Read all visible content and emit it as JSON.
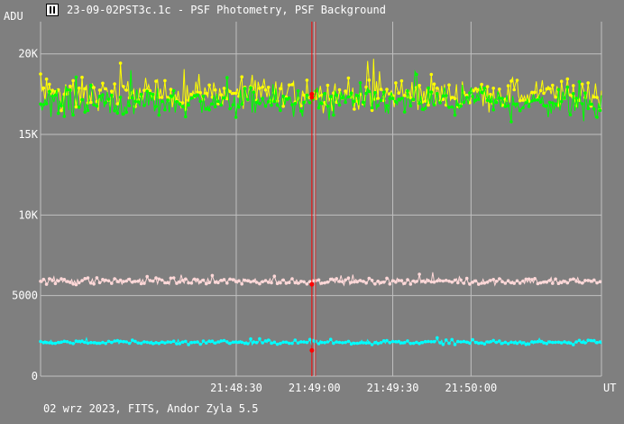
{
  "window": {
    "title": "23-09-02PST3c.1c - PSF Photometry, PSF Background",
    "icon": "app-logo-icon"
  },
  "footer": "02 wrz 2023, FITS, Andor Zyla 5.5",
  "chart_data": {
    "type": "line",
    "title": "",
    "ylabel": "ADU",
    "xlabel": "UT",
    "ylim": [
      0,
      22000
    ],
    "xlim": [
      -105,
      110
    ],
    "x_unit": "seconds relative to 21:49:00 UT",
    "y_ticks": [
      {
        "value": 0,
        "label": "0"
      },
      {
        "value": 5000,
        "label": "5000"
      },
      {
        "value": 10000,
        "label": "10K"
      },
      {
        "value": 15000,
        "label": "15K"
      },
      {
        "value": 20000,
        "label": "20K"
      }
    ],
    "x_ticks": [
      {
        "value": -30,
        "label": "21:48:30"
      },
      {
        "value": 0,
        "label": "21:49:00"
      },
      {
        "value": 30,
        "label": "21:49:30"
      },
      {
        "value": 60,
        "label": "21:50:00"
      }
    ],
    "grid": true,
    "cursor": {
      "x": -1,
      "color": "#ff0000"
    },
    "series": [
      {
        "color": "#ffff00",
        "mean": 17500,
        "noise": 1400,
        "markers": [
          {
            "x": -1,
            "y": 17500
          }
        ]
      },
      {
        "color": "#00ff00",
        "mean": 17000,
        "noise": 1300,
        "markers": [
          {
            "x": -1,
            "y": 17300
          }
        ]
      },
      {
        "color": "#ffd8d8",
        "mean": 5900,
        "noise": 300,
        "markers": [
          {
            "x": -1,
            "y": 5700
          }
        ]
      },
      {
        "color": "#00ffff",
        "mean": 2100,
        "noise": 180,
        "markers": [
          {
            "x": -1,
            "y": 1600
          }
        ]
      }
    ],
    "colors": {
      "background": "#7f7f7f",
      "grid": "#c0c0c0",
      "cursor": "#ff0000",
      "marker": "#ff0000"
    }
  }
}
